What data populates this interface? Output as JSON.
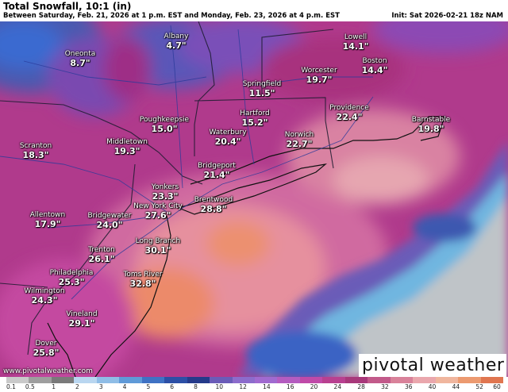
{
  "header": {
    "title": "Total Snowfall, 10:1 (in)",
    "subtitle": "Between Saturday, Feb. 21, 2026 at 1 p.m. EST and Monday, Feb. 23, 2026 at 4 p.m. EST",
    "init": "Init: Sat 2026-02-21 18z NAM"
  },
  "cities": [
    {
      "name": "Albany",
      "value": "4.7\""
    },
    {
      "name": "Oneonta",
      "value": "8.7\""
    },
    {
      "name": "Lowell",
      "value": "14.1\""
    },
    {
      "name": "Boston",
      "value": "14.4\""
    },
    {
      "name": "Worcester",
      "value": "19.7\""
    },
    {
      "name": "Springfield",
      "value": "11.5\""
    },
    {
      "name": "Hartford",
      "value": "15.2\""
    },
    {
      "name": "Providence",
      "value": "22.4\""
    },
    {
      "name": "Barnstable",
      "value": "19.8\""
    },
    {
      "name": "Poughkeepsie",
      "value": "15.0\""
    },
    {
      "name": "Waterbury",
      "value": "20.4\""
    },
    {
      "name": "Norwich",
      "value": "22.7\""
    },
    {
      "name": "Middletown",
      "value": "19.3\""
    },
    {
      "name": "Scranton",
      "value": "18.3\""
    },
    {
      "name": "Bridgeport",
      "value": "21.4\""
    },
    {
      "name": "Yonkers",
      "value": "23.3\""
    },
    {
      "name": "New York City",
      "value": "27.6\""
    },
    {
      "name": "Brentwood",
      "value": "28.8\""
    },
    {
      "name": "Allentown",
      "value": "17.9\""
    },
    {
      "name": "Bridgewater",
      "value": "24.0\""
    },
    {
      "name": "Long Branch",
      "value": "30.1\""
    },
    {
      "name": "Trenton",
      "value": "26.1\""
    },
    {
      "name": "Philadelphia",
      "value": "25.3\""
    },
    {
      "name": "Toms River",
      "value": "32.8\""
    },
    {
      "name": "Wilmington",
      "value": "24.3\""
    },
    {
      "name": "Vineland",
      "value": "29.1\""
    },
    {
      "name": "Dover",
      "value": "25.8\""
    }
  ],
  "footer": {
    "url": "www.pivotalweather.com",
    "brand": "pivotal weather"
  },
  "legend": {
    "ticks": [
      "0.1",
      "0.5",
      "1",
      "2",
      "3",
      "4",
      "5",
      "6",
      "8",
      "10",
      "12",
      "14",
      "16",
      "20",
      "24",
      "28",
      "32",
      "36",
      "40",
      "44",
      "52",
      "60"
    ],
    "colors": [
      "#c9c9c9",
      "#9e9e9e",
      "#7a7a7a",
      "#b9d6f0",
      "#8fbde6",
      "#5f9ad8",
      "#3f72c4",
      "#2c4fa6",
      "#253a8a",
      "#6a5cb8",
      "#8c6ccc",
      "#a06ad0",
      "#b45cc0",
      "#c04aa8",
      "#b84090",
      "#a8387a",
      "#c25a8a",
      "#d9829a",
      "#eaa7ad",
      "#f0b69e",
      "#ec9a70",
      "#e07650"
    ],
    "colors_meaning": "snowfall shading scale"
  }
}
